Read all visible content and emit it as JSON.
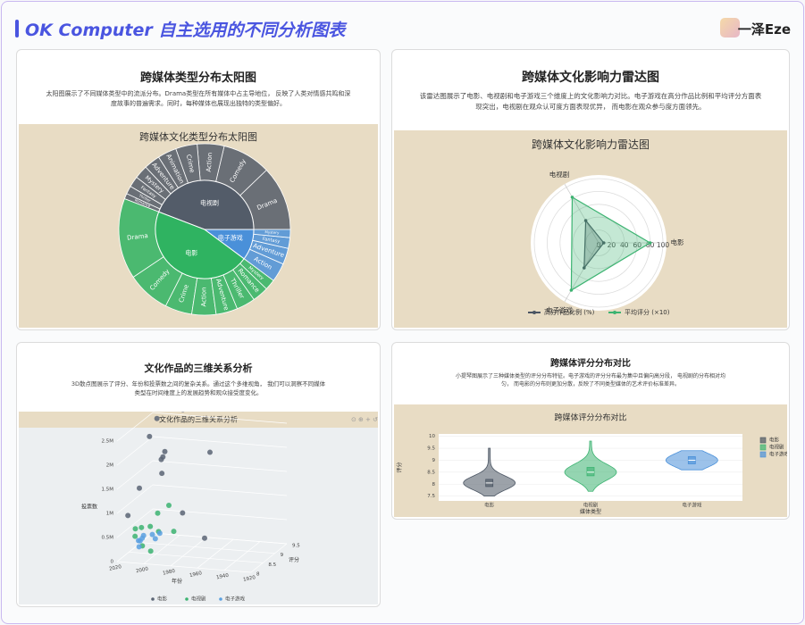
{
  "header": {
    "title": "OK Computer 自主选用的不同分析图表",
    "brand": "一泽Eze"
  },
  "cards": [
    {
      "title": "跨媒体类型分布太阳图",
      "description": "太阳图展示了不同媒体类型中的流派分布。Drama类型在所有媒体中占主导地位， 反映了人类对情感共鸣和深度故事的普遍需求。同时，每种媒体也展现出独特的类型偏好。"
    },
    {
      "title": "跨媒体文化影响力雷达图",
      "description": "该雷达图展示了电影、电视剧和电子游戏三个维度上的文化影响力对比。电子游戏在高分作品比例和平均评分方面表现突出，电视剧在观众认可度方面表现优异， 而电影在观众参与度方面领先。"
    },
    {
      "title": "文化作品的三维关系分析",
      "description": "3D散点图展示了评分、年份和投票数之间的复杂关系。通过这个多维视角， 我们可以洞察不同媒体类型在时间维度上的发展趋势和观众接受度变化。"
    },
    {
      "title": "跨媒体评分分布对比",
      "description": "小提琴图展示了三种媒体类型的评分分布特征。电子游戏的评分分布最为集中且偏向高分段， 电视剧的分布相对均匀， 而电影的分布则更加分散，反映了不同类型媒体的艺术评价标准差异。"
    }
  ],
  "chart_data": [
    {
      "type": "sunburst",
      "title": "跨媒体文化类型分布太阳图",
      "series": [
        {
          "name": "电视剧",
          "color": "#535c69",
          "categories": [
            "Drama",
            "Comedy",
            "Action",
            "Crime",
            "Animation",
            "Adventure",
            "Mystery",
            "Fantasy",
            "Thriller",
            "Romance"
          ],
          "values": [
            120,
            90,
            50,
            40,
            35,
            30,
            25,
            20,
            15,
            10
          ]
        },
        {
          "name": "电影",
          "color": "#2fb361",
          "categories": [
            "Drama",
            "Comedy",
            "Crime",
            "Action",
            "Adventure",
            "Thriller",
            "Romance",
            "Mystery"
          ],
          "values": [
            150,
            80,
            50,
            45,
            40,
            35,
            30,
            20
          ]
        },
        {
          "name": "电子游戏",
          "color": "#4a90d9",
          "categories": [
            "Action",
            "Adventure",
            "Fantasy",
            "Mystery"
          ],
          "values": [
            35,
            30,
            20,
            15
          ]
        }
      ]
    },
    {
      "type": "radar",
      "title": "跨媒体文化影响力雷达图",
      "categories": [
        "电影",
        "电视剧",
        "电子游戏"
      ],
      "rlim": [
        0,
        100
      ],
      "rticks": [
        0,
        20,
        40,
        60,
        80,
        100
      ],
      "series": [
        {
          "name": "高分作品比例 (%)",
          "color": "#4b5563",
          "values": [
            8,
            40,
            45
          ]
        },
        {
          "name": "平均评分 (×10)",
          "color": "#3cb371",
          "values": [
            80,
            82,
            85
          ]
        }
      ]
    },
    {
      "type": "scatter3d",
      "title": "文化作品的三维关系分析",
      "xlabel": "年份",
      "ylabel": "评分",
      "zlabel": "投票数",
      "xlim": [
        1920,
        2020
      ],
      "xticks": [
        2020,
        2000,
        1980,
        1960,
        1940,
        1920
      ],
      "ylim": [
        8,
        9.5
      ],
      "yticks": [
        8,
        8.5,
        9,
        9.5
      ],
      "zlim": [
        0,
        2500000
      ],
      "zticks": [
        0,
        {
          "value": 500000,
          "label": "0.5M"
        },
        {
          "value": 1000000,
          "label": "1M"
        },
        {
          "value": 1500000,
          "label": "1.5M"
        },
        {
          "value": 2000000,
          "label": "2M"
        },
        {
          "value": 2500000,
          "label": "2.5M"
        }
      ],
      "series": [
        {
          "name": "电影",
          "color": "#5a6474",
          "x": [
            1995,
            2000,
            2008,
            2010,
            1994,
            1972,
            1999,
            2003,
            2014,
            1980,
            1960,
            2019
          ],
          "y": [
            8.6,
            8.8,
            9.0,
            8.8,
            9.3,
            9.2,
            8.7,
            8.9,
            8.6,
            8.5,
            8.3,
            8.4
          ],
          "z": [
            2100000,
            1900000,
            2600000,
            2300000,
            2700000,
            1900000,
            1600000,
            1800000,
            1300000,
            900000,
            500000,
            800000
          ]
        },
        {
          "name": "电视剧",
          "color": "#3cb371",
          "x": [
            2008,
            2011,
            2016,
            2005,
            2019,
            2013,
            1999,
            2010,
            2017,
            2002
          ],
          "y": [
            9.5,
            9.2,
            8.8,
            8.9,
            8.7,
            9.0,
            9.2,
            8.5,
            8.6,
            8.4
          ],
          "z": [
            600000,
            550000,
            400000,
            300000,
            250000,
            350000,
            200000,
            150000,
            450000,
            100000
          ]
        },
        {
          "name": "电子游戏",
          "color": "#5aa0e0",
          "x": [
            2018,
            2015,
            2020,
            2011,
            2017,
            2013,
            2019,
            2016
          ],
          "y": [
            9.0,
            9.2,
            8.9,
            9.1,
            8.8,
            9.4,
            9.0,
            8.7
          ],
          "z": [
            150000,
            100000,
            80000,
            60000,
            120000,
            50000,
            90000,
            40000
          ]
        }
      ]
    },
    {
      "type": "violin",
      "title": "跨媒体评分分布对比",
      "xlabel": "媒体类型",
      "ylabel": "评分",
      "categories": [
        "电影",
        "电视剧",
        "电子游戏"
      ],
      "ylim": [
        7.3,
        10.1
      ],
      "yticks": [
        7.5,
        8,
        8.5,
        9,
        9.5,
        10
      ],
      "series": [
        {
          "name": "电影",
          "color": "#4b5563",
          "min": 7.5,
          "q1": 7.9,
          "median": 8.05,
          "q3": 8.2,
          "max": 9.5
        },
        {
          "name": "电视剧",
          "color": "#3cb371",
          "min": 7.7,
          "q1": 8.35,
          "median": 8.5,
          "q3": 8.7,
          "max": 9.8
        },
        {
          "name": "电子游戏",
          "color": "#4a90d9",
          "min": 8.6,
          "q1": 8.85,
          "median": 9.0,
          "q3": 9.15,
          "max": 9.4
        }
      ]
    }
  ]
}
